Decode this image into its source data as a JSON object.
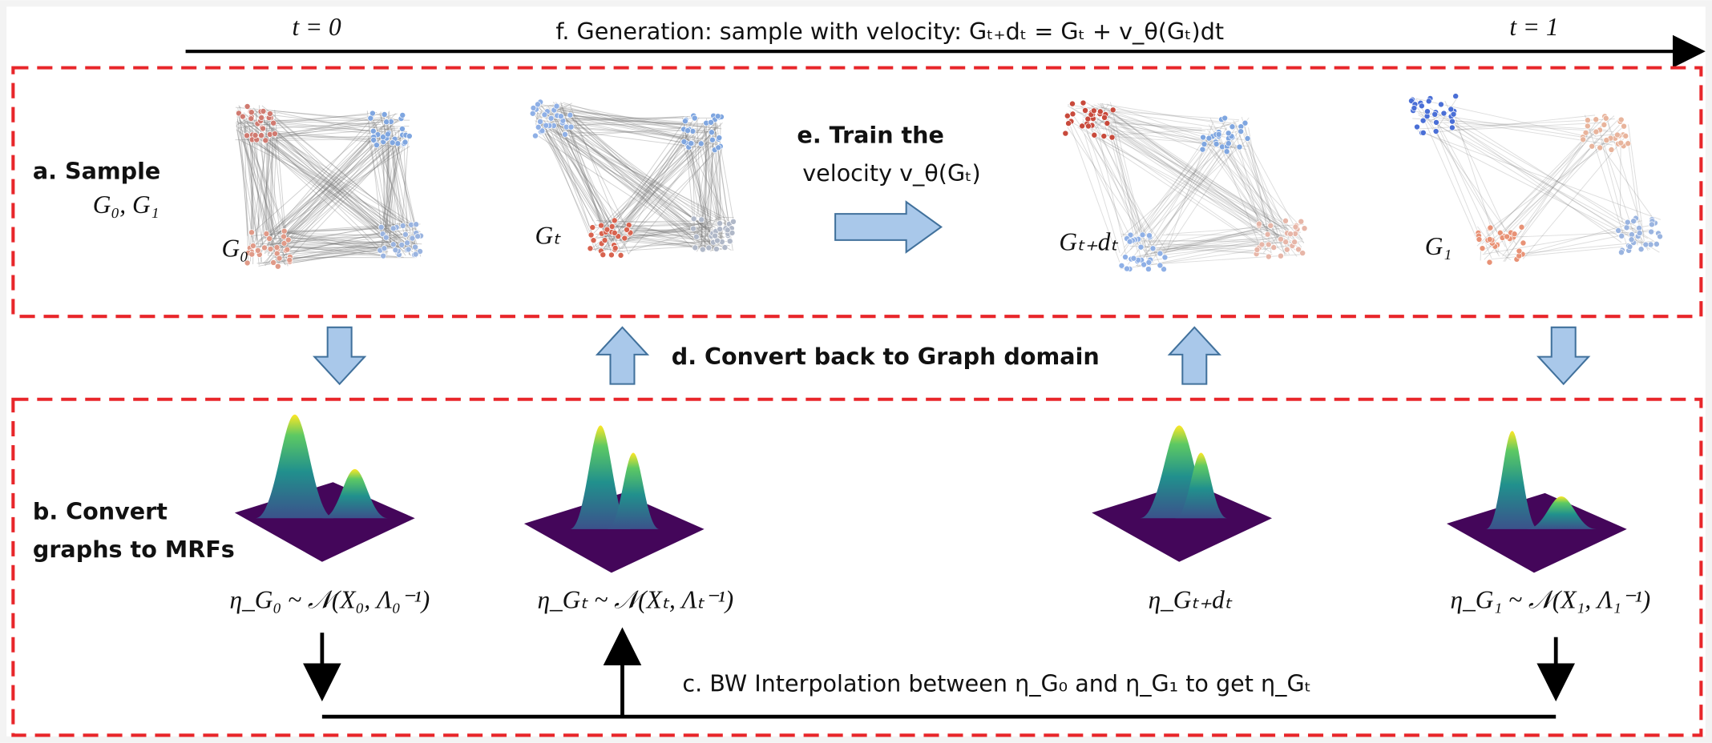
{
  "top": {
    "t0": "t = 0",
    "t1": "t = 1",
    "generation": "f. Generation: sample with velocity: Gₜ₊dₜ = Gₜ + v_θ(Gₜ)dt"
  },
  "sample": {
    "label": "a. Sample",
    "graphs": "G₀, G₁"
  },
  "graph_labels": [
    "G₀",
    "Gₜ",
    "Gₜ₊dₜ",
    "G₁"
  ],
  "train": {
    "line1": "e. Train the",
    "line2": "velocity v_θ(Gₜ)"
  },
  "convert_back": "d. Convert back to Graph domain",
  "convert": {
    "line1": "b. Convert",
    "line2": "graphs to MRFs"
  },
  "mrf_labels": [
    "η_G₀ ~ 𝒩(X₀, Λ₀⁻¹)",
    "η_Gₜ ~ 𝒩(Xₜ, Λₜ⁻¹)",
    "η_Gₜ₊dₜ",
    "η_G₁ ~ 𝒩(X₁, Λ₁⁻¹)"
  ],
  "interpolation": "c. BW Interpolation between η_G₀ and η_G₁ to get η_Gₜ"
}
